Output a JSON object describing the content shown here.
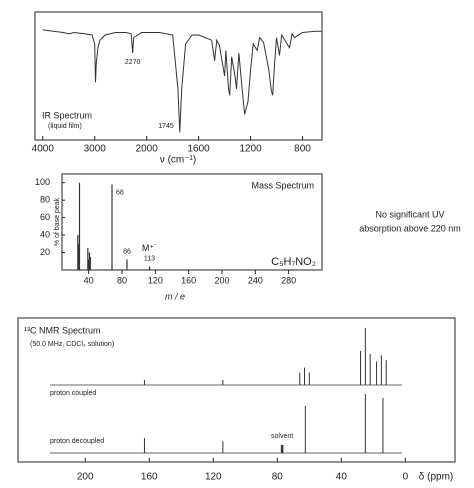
{
  "chart_data": [
    {
      "type": "line",
      "title": "IR Spectrum",
      "subtitle": "(liquid film)",
      "x_label": "ν (cm⁻¹)",
      "color": "#333333",
      "x": [
        4000,
        3800,
        3600,
        3500,
        3400,
        3200,
        3050,
        3000,
        2985,
        2970,
        2940,
        2900,
        2800,
        2600,
        2400,
        2300,
        2270,
        2250,
        2100,
        1900,
        1800,
        1760,
        1745,
        1730,
        1700,
        1650,
        1600,
        1500,
        1477,
        1460,
        1440,
        1400,
        1390,
        1370,
        1361,
        1345,
        1320,
        1308,
        1290,
        1270,
        1246,
        1220,
        1200,
        1180,
        1150,
        1130,
        1100,
        1060,
        1040,
        1030,
        1015,
        1000,
        977,
        960,
        900,
        880,
        860,
        800,
        700,
        650
      ],
      "values": [
        86,
        85,
        84,
        83,
        84,
        83,
        82,
        75,
        45,
        60,
        72,
        78,
        82,
        84,
        84,
        83,
        68,
        80,
        84,
        84,
        82,
        40,
        6,
        40,
        75,
        82,
        82,
        78,
        62,
        78,
        74,
        50,
        70,
        40,
        35,
        65,
        50,
        40,
        68,
        45,
        20,
        30,
        55,
        75,
        70,
        80,
        76,
        55,
        38,
        35,
        60,
        80,
        66,
        82,
        72,
        83,
        80,
        84,
        85,
        85
      ],
      "xlim": [
        4150,
        650
      ],
      "ylim": [
        0,
        100
      ],
      "xticks": [
        4000,
        3000,
        2000,
        1600,
        1200,
        800
      ],
      "peak_labels": [
        2270,
        1745
      ]
    },
    {
      "type": "bar",
      "title": "Mass Spectrum",
      "formula": "C₅H₇NO₂",
      "y_label": "% of base peak",
      "x_label": "m / e",
      "color": "#333333",
      "x": [
        27,
        28,
        29,
        39,
        40,
        41,
        42,
        68,
        86,
        113
      ],
      "values": [
        40,
        30,
        100,
        25,
        12,
        20,
        15,
        98,
        12,
        4
      ],
      "xlim": [
        8,
        320
      ],
      "ylim": [
        0,
        110
      ],
      "xticks": [
        40,
        80,
        120,
        160,
        200,
        240,
        280
      ],
      "yticks": [
        20,
        40,
        60,
        80,
        100
      ],
      "peak_labels": [
        68,
        86,
        113
      ],
      "molecular_ion_label": "M⁺˙"
    },
    {
      "type": "stick",
      "title": "¹³C NMR Spectrum",
      "subtitle": "(50.0 MHz, CDCl₃ solution)",
      "x_label": "δ (ppm)",
      "color": "#333333",
      "xlim": [
        242,
        -31
      ],
      "ylim": [
        0,
        100
      ],
      "xticks": [
        200,
        160,
        120,
        80,
        40,
        0
      ],
      "annotation": "solvent",
      "series": [
        {
          "name": "proton coupled",
          "x": [
            163,
            114,
            66,
            63,
            60,
            28,
            25,
            22,
            18,
            15,
            12
          ],
          "values": [
            8,
            8,
            20,
            28,
            20,
            55,
            92,
            50,
            38,
            48,
            40
          ]
        },
        {
          "name": "proton decoupled",
          "x": [
            163,
            114,
            77.5,
            77,
            76.5,
            62.5,
            25,
            14
          ],
          "values": [
            24,
            19,
            13,
            13,
            13,
            76,
            95,
            89
          ]
        }
      ]
    }
  ],
  "uv_note": [
    "No significant UV",
    "absorption above 220 nm"
  ]
}
